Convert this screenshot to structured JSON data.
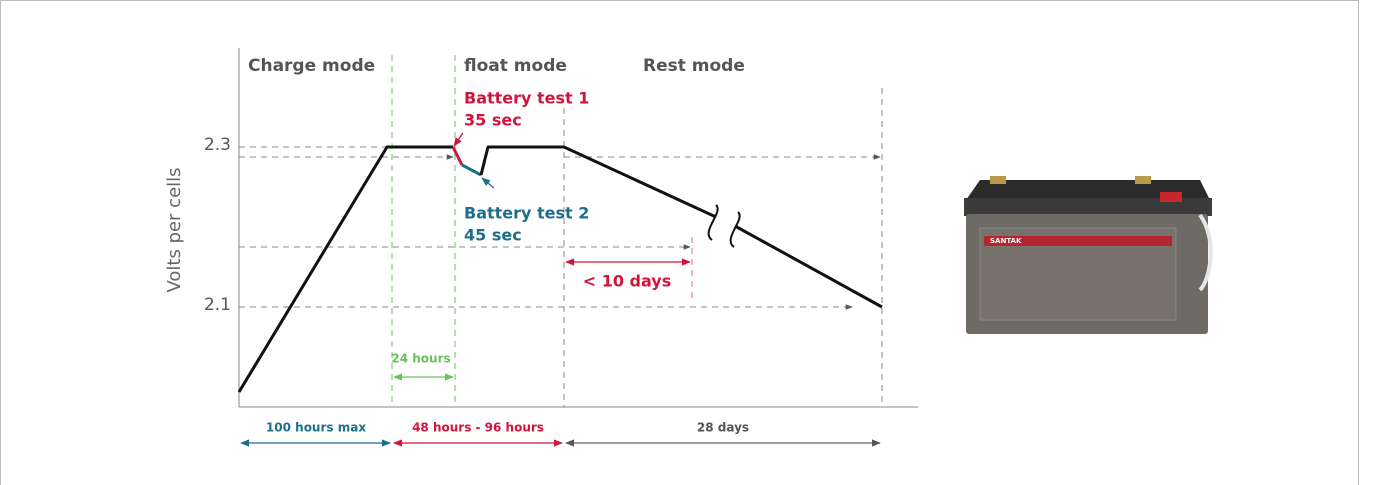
{
  "diagram": {
    "y_axis_label": "Volts per cells",
    "y_tick_labels": [
      "2.3",
      "2.1"
    ],
    "modes": [
      "Charge mode",
      "float mode",
      "Rest mode"
    ],
    "battery_test_1": {
      "name": "Battery test 1",
      "duration": "35 sec"
    },
    "battery_test_2": {
      "name": "Battery test 2",
      "duration": "45 sec"
    },
    "rest_limit": "< 10 days",
    "float_start": "24 hours",
    "durations": [
      "100 hours max",
      "48 hours - 96 hours",
      "28 days"
    ],
    "product_brand": "SANTAK"
  }
}
